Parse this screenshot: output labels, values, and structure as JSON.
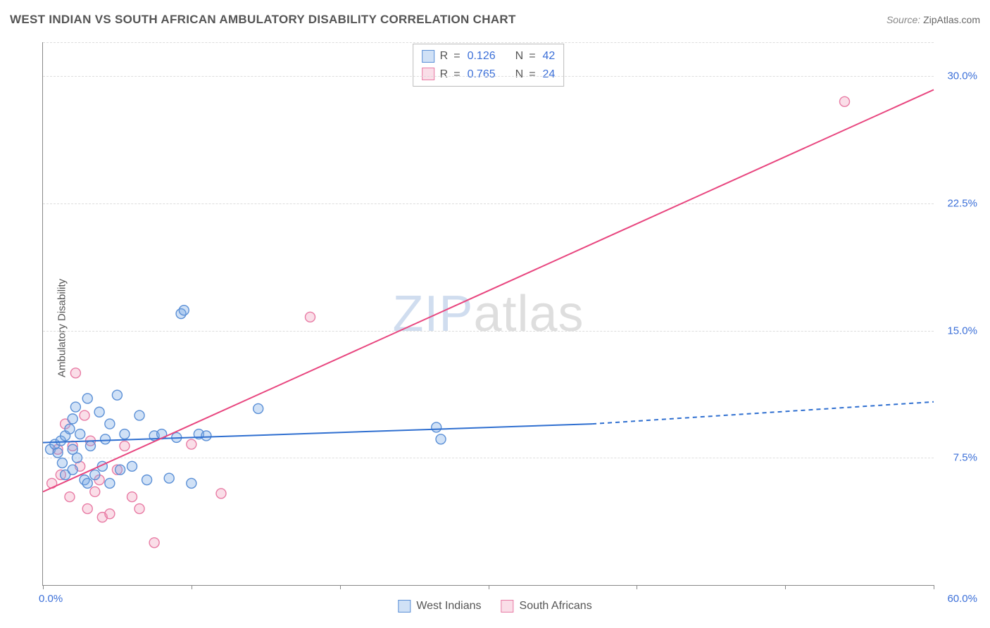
{
  "title": "WEST INDIAN VS SOUTH AFRICAN AMBULATORY DISABILITY CORRELATION CHART",
  "source_label": "Source:",
  "source_value": "ZipAtlas.com",
  "watermark": {
    "part1": "ZIP",
    "part2": "atlas"
  },
  "chart": {
    "type": "scatter",
    "ylabel": "Ambulatory Disability",
    "xlim": [
      0,
      60
    ],
    "ylim": [
      0,
      32
    ],
    "xlim_labels": {
      "min": "0.0%",
      "max": "60.0%"
    },
    "ytick_values": [
      7.5,
      15.0,
      22.5,
      30.0
    ],
    "ytick_labels": [
      "7.5%",
      "15.0%",
      "22.5%",
      "30.0%"
    ],
    "xtick_marks": [
      0,
      10,
      20,
      30,
      40,
      50,
      60
    ],
    "axis_color": "#888888",
    "grid_color": "#dddddd",
    "tick_label_color": "#3b6fd8",
    "background_color": "#ffffff",
    "circle_radius": 7,
    "circle_stroke_width": 1.4,
    "line_width": 2,
    "series": [
      {
        "name": "West Indians",
        "fill": "rgba(120,170,230,0.35)",
        "stroke": "#5a8fd6",
        "trend_color": "#2f6fd0",
        "R": "0.126",
        "N": "42",
        "trend": {
          "x1": 0,
          "y1": 8.4,
          "x2": 37,
          "y2": 9.5,
          "x2_dash": 60,
          "y2_dash": 10.8
        },
        "points": [
          [
            0.5,
            8.0
          ],
          [
            0.8,
            8.3
          ],
          [
            1.0,
            7.8
          ],
          [
            1.2,
            8.5
          ],
          [
            1.3,
            7.2
          ],
          [
            1.5,
            8.8
          ],
          [
            1.5,
            6.5
          ],
          [
            1.8,
            9.2
          ],
          [
            2.0,
            8.0
          ],
          [
            2.0,
            6.8
          ],
          [
            2.2,
            10.5
          ],
          [
            2.3,
            7.5
          ],
          [
            2.5,
            8.9
          ],
          [
            2.8,
            6.2
          ],
          [
            3.0,
            11.0
          ],
          [
            3.2,
            8.2
          ],
          [
            3.5,
            6.5
          ],
          [
            3.8,
            10.2
          ],
          [
            4.0,
            7.0
          ],
          [
            4.2,
            8.6
          ],
          [
            4.5,
            6.0
          ],
          [
            5.0,
            11.2
          ],
          [
            5.2,
            6.8
          ],
          [
            5.5,
            8.9
          ],
          [
            6.0,
            7.0
          ],
          [
            6.5,
            10.0
          ],
          [
            7.0,
            6.2
          ],
          [
            7.5,
            8.8
          ],
          [
            8.0,
            8.9
          ],
          [
            8.5,
            6.3
          ],
          [
            9.0,
            8.7
          ],
          [
            9.3,
            16.0
          ],
          [
            9.5,
            16.2
          ],
          [
            10.0,
            6.0
          ],
          [
            10.5,
            8.9
          ],
          [
            11.0,
            8.8
          ],
          [
            14.5,
            10.4
          ],
          [
            26.5,
            9.3
          ],
          [
            26.8,
            8.6
          ],
          [
            4.5,
            9.5
          ],
          [
            3.0,
            6.0
          ],
          [
            2.0,
            9.8
          ]
        ]
      },
      {
        "name": "South Africans",
        "fill": "rgba(240,160,190,0.35)",
        "stroke": "#e87ba4",
        "trend_color": "#e8467f",
        "R": "0.765",
        "N": "24",
        "trend": {
          "x1": 0,
          "y1": 5.5,
          "x2": 60,
          "y2": 29.2,
          "x2_dash": 60,
          "y2_dash": 29.2
        },
        "points": [
          [
            0.6,
            6.0
          ],
          [
            1.0,
            8.0
          ],
          [
            1.2,
            6.5
          ],
          [
            1.5,
            9.5
          ],
          [
            1.8,
            5.2
          ],
          [
            2.0,
            8.2
          ],
          [
            2.2,
            12.5
          ],
          [
            2.5,
            7.0
          ],
          [
            2.8,
            10.0
          ],
          [
            3.0,
            4.5
          ],
          [
            3.2,
            8.5
          ],
          [
            3.5,
            5.5
          ],
          [
            4.0,
            4.0
          ],
          [
            4.5,
            4.2
          ],
          [
            5.0,
            6.8
          ],
          [
            5.5,
            8.2
          ],
          [
            6.0,
            5.2
          ],
          [
            6.5,
            4.5
          ],
          [
            7.5,
            2.5
          ],
          [
            10.0,
            8.3
          ],
          [
            12.0,
            5.4
          ],
          [
            18.0,
            15.8
          ],
          [
            54.0,
            28.5
          ],
          [
            3.8,
            6.2
          ]
        ]
      }
    ],
    "legend_top": {
      "r_label": "R",
      "n_label": "N",
      "eq": "="
    }
  }
}
